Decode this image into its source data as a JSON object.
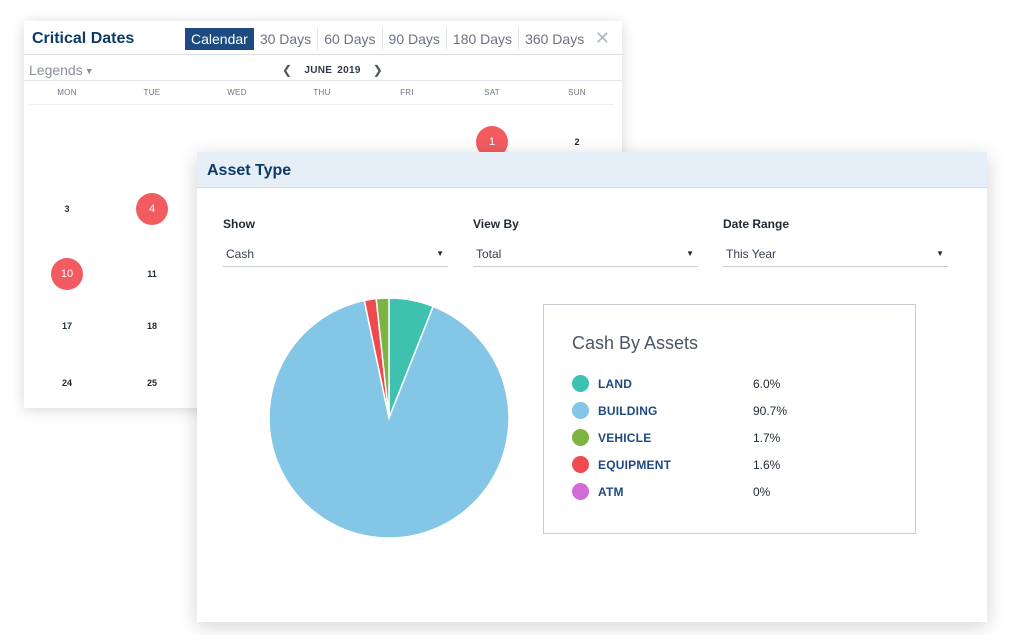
{
  "critical_dates": {
    "title": "Critical Dates",
    "range_tabs": [
      "Calendar",
      "30 Days",
      "60 Days",
      "90 Days",
      "180 Days",
      "360 Days"
    ],
    "active_tab": "Calendar",
    "close_glyph": "✕",
    "legends_label": "Legends",
    "month": "JUNE",
    "year": "2019",
    "weekdays": [
      "MON",
      "TUE",
      "WED",
      "THU",
      "FRI",
      "SAT",
      "SUN"
    ],
    "days": [
      {
        "label": "1",
        "weekday": 5,
        "week": 0,
        "marked": true
      },
      {
        "label": "2",
        "weekday": 6,
        "week": 0,
        "marked": false
      },
      {
        "label": "3",
        "weekday": 0,
        "week": 1,
        "marked": false
      },
      {
        "label": "4",
        "weekday": 1,
        "week": 1,
        "marked": true
      },
      {
        "label": "10",
        "weekday": 0,
        "week": 2,
        "marked": true
      },
      {
        "label": "11",
        "weekday": 1,
        "week": 2,
        "marked": false
      },
      {
        "label": "17",
        "weekday": 0,
        "week": 3,
        "marked": false
      },
      {
        "label": "18",
        "weekday": 1,
        "week": 3,
        "marked": false
      },
      {
        "label": "24",
        "weekday": 0,
        "week": 4,
        "marked": false
      },
      {
        "label": "25",
        "weekday": 1,
        "week": 4,
        "marked": false
      }
    ],
    "marked_color": "#f25c61"
  },
  "asset_type": {
    "title": "Asset Type",
    "filters": [
      {
        "label": "Show",
        "value": "Cash"
      },
      {
        "label": "View By",
        "value": "Total"
      },
      {
        "label": "Date Range",
        "value": "This Year"
      }
    ]
  },
  "chart_data": {
    "type": "pie",
    "title": "Cash By Assets",
    "legend_position": "right",
    "slices": [
      {
        "label": "LAND",
        "value": 6.0,
        "display": "6.0%",
        "color": "#3fc1b0"
      },
      {
        "label": "BUILDING",
        "value": 90.7,
        "display": "90.7%",
        "color": "#84c6e6"
      },
      {
        "label": "VEHICLE",
        "value": 1.7,
        "display": "1.7%",
        "color": "#7cb342"
      },
      {
        "label": "EQUIPMENT",
        "value": 1.6,
        "display": "1.6%",
        "color": "#ef4a4f"
      },
      {
        "label": "ATM",
        "value": 0,
        "display": "0%",
        "color": "#d26bd8"
      }
    ]
  }
}
